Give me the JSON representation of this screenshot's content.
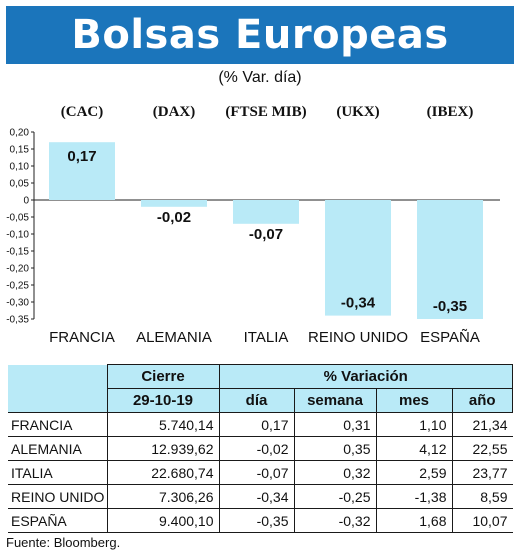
{
  "title": "Bolsas Europeas",
  "subtitle": "(% Var. día)",
  "chart_data": {
    "type": "bar",
    "categories": [
      "FRANCIA",
      "ALEMANIA",
      "ITALIA",
      "REINO UNIDO",
      "ESPAÑA"
    ],
    "indices": [
      "(CAC)",
      "(DAX)",
      "(FTSE MIB)",
      "(UKX)",
      "(IBEX)"
    ],
    "values": [
      0.17,
      -0.02,
      -0.07,
      -0.34,
      -0.35
    ],
    "value_labels": [
      "0,17",
      "-0,02",
      "-0,07",
      "-0,34",
      "-0,35"
    ],
    "ylim": [
      -0.35,
      0.2
    ],
    "yticks": [
      0.2,
      0.15,
      0.1,
      0.05,
      0,
      -0.05,
      -0.1,
      -0.15,
      -0.2,
      -0.25,
      -0.3,
      -0.35
    ],
    "ytick_labels": [
      "0,20",
      "0,15",
      "0,10",
      "0,05",
      "0",
      "-0,05",
      "-0,10",
      "-0,15",
      "-0,20",
      "-0,25",
      "-0,30",
      "-0,35"
    ],
    "bar_color": "#b9eaf7",
    "grid": false,
    "title": "",
    "xlabel": "",
    "ylabel": ""
  },
  "table": {
    "header_cierre": "Cierre",
    "header_variacion": "% Variación",
    "date": "29-10-19",
    "columns": [
      "día",
      "semana",
      "mes",
      "año"
    ],
    "rows": [
      {
        "country": "FRANCIA",
        "cierre": "5.740,14",
        "dia": "0,17",
        "semana": "0,31",
        "mes": "1,10",
        "anio": "21,34"
      },
      {
        "country": "ALEMANIA",
        "cierre": "12.939,62",
        "dia": "-0,02",
        "semana": "0,35",
        "mes": "4,12",
        "anio": "22,55"
      },
      {
        "country": "ITALIA",
        "cierre": "22.680,74",
        "dia": "-0,07",
        "semana": "0,32",
        "mes": "2,59",
        "anio": "23,77"
      },
      {
        "country": "REINO UNIDO",
        "cierre": "7.306,26",
        "dia": "-0,34",
        "semana": "-0,25",
        "mes": "-1,38",
        "anio": "8,59"
      },
      {
        "country": "ESPAÑA",
        "cierre": "9.400,10",
        "dia": "-0,35",
        "semana": "-0,32",
        "mes": "1,68",
        "anio": "10,07"
      }
    ]
  },
  "source": "Fuente: Bloomberg."
}
